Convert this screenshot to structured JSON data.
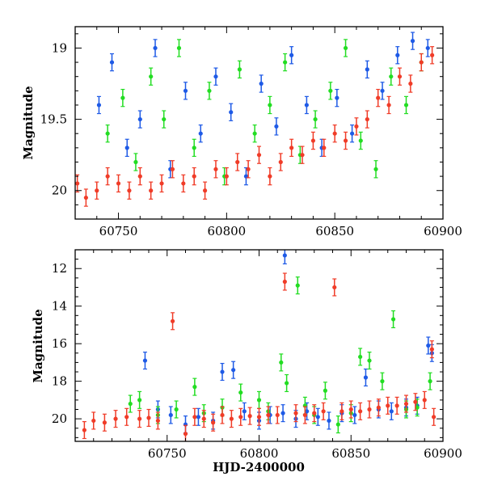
{
  "chart_data": [
    {
      "type": "scatter",
      "title": "",
      "xlabel": "",
      "ylabel": "Magnitude",
      "xlim": [
        60730,
        60900
      ],
      "ylim": [
        20.2,
        18.85
      ],
      "y_inverted": true,
      "grid": false,
      "xticks": [
        60750,
        60800,
        60850,
        60900
      ],
      "yticks": [
        19,
        19.5,
        20
      ],
      "series": [
        {
          "color": "#22dd22",
          "x": [
            60745,
            60752,
            60758,
            60765,
            60771,
            60778,
            60785,
            60792,
            60799,
            60806,
            60813,
            60820,
            60827,
            60834,
            60841,
            60848,
            60855,
            60862,
            60869,
            60876,
            60883,
            60890
          ],
          "y": [
            19.6,
            19.35,
            19.8,
            19.2,
            19.5,
            19.0,
            19.7,
            19.3,
            19.9,
            19.15,
            19.6,
            19.4,
            19.1,
            19.75,
            19.5,
            19.3,
            19.0,
            19.65,
            19.85,
            19.2,
            19.4,
            19.1
          ]
        },
        {
          "color": "#1e5ae6",
          "x": [
            60741,
            60747,
            60754,
            60760,
            60767,
            60774,
            60781,
            60788,
            60795,
            60802,
            60809,
            60816,
            60823,
            60830,
            60837,
            60844,
            60851,
            60858,
            60865,
            60872,
            60879,
            60886,
            60893
          ],
          "y": [
            19.4,
            19.1,
            19.7,
            19.5,
            19.0,
            19.85,
            19.3,
            19.6,
            19.2,
            19.45,
            19.9,
            19.25,
            19.55,
            19.05,
            19.4,
            19.7,
            19.35,
            19.6,
            19.15,
            19.3,
            19.05,
            18.95,
            19.0
          ]
        },
        {
          "color": "#f03c28",
          "x": [
            60731,
            60735,
            60740,
            60745,
            60750,
            60755,
            60760,
            60765,
            60770,
            60775,
            60780,
            60785,
            60790,
            60795,
            60800,
            60805,
            60810,
            60815,
            60820,
            60825,
            60830,
            60835,
            60840,
            60845,
            60850,
            60855,
            60860,
            60865,
            60870,
            60875,
            60880,
            60885,
            60890,
            60895
          ],
          "y": [
            19.95,
            20.05,
            20.0,
            19.9,
            19.95,
            20.0,
            19.9,
            20.0,
            19.95,
            19.85,
            19.95,
            19.9,
            20.0,
            19.85,
            19.9,
            19.8,
            19.85,
            19.75,
            19.9,
            19.8,
            19.7,
            19.75,
            19.65,
            19.7,
            19.6,
            19.65,
            19.55,
            19.5,
            19.35,
            19.4,
            19.2,
            19.25,
            19.1,
            19.05
          ]
        }
      ]
    },
    {
      "type": "scatter",
      "title": "",
      "xlabel": "HJD-2400000",
      "ylabel": "Magnitude",
      "xlim": [
        60700,
        60900
      ],
      "ylim": [
        21.2,
        11.0
      ],
      "y_inverted": true,
      "grid": false,
      "xticks": [
        60750,
        60800,
        60850,
        60900
      ],
      "yticks": [
        12,
        14,
        16,
        18,
        20
      ],
      "series": [
        {
          "color": "#1e5ae6",
          "x": [
            60738,
            60745,
            60752,
            60760,
            60767,
            60775,
            60780,
            60786,
            60792,
            60800,
            60806,
            60813,
            60814,
            60820,
            60826,
            60832,
            60838,
            60845,
            60852,
            60858,
            60865,
            60872,
            60880,
            60886,
            60892,
            60894
          ],
          "y": [
            16.9,
            19.5,
            19.8,
            20.3,
            19.9,
            20.1,
            17.5,
            17.4,
            19.6,
            20.1,
            19.8,
            19.7,
            11.3,
            20.0,
            19.6,
            19.9,
            20.1,
            19.7,
            19.8,
            17.8,
            19.5,
            19.6,
            19.4,
            19.3,
            16.1,
            16.5
          ]
        },
        {
          "color": "#22dd22",
          "x": [
            60730,
            60735,
            60745,
            60755,
            60765,
            60770,
            60780,
            60790,
            60800,
            60805,
            60812,
            60815,
            60821,
            60825,
            60830,
            60836,
            60843,
            60850,
            60855,
            60860,
            60867,
            60873,
            60880,
            60886,
            60893
          ],
          "y": [
            19.2,
            19.0,
            19.8,
            19.5,
            18.3,
            19.7,
            19.4,
            18.6,
            19.0,
            19.6,
            17.0,
            18.1,
            12.9,
            19.3,
            19.8,
            18.5,
            20.3,
            19.7,
            16.7,
            16.9,
            18.0,
            14.7,
            19.5,
            19.4,
            18.0
          ]
        },
        {
          "color": "#f03c28",
          "x": [
            60705,
            60710,
            60716,
            60722,
            60728,
            60735,
            60740,
            60745,
            60753,
            60760,
            60765,
            60770,
            60775,
            60780,
            60785,
            60790,
            60795,
            60800,
            60805,
            60810,
            60814,
            60820,
            60825,
            60830,
            60835,
            60841,
            60845,
            60850,
            60855,
            60860,
            60865,
            60870,
            60875,
            60880,
            60885,
            60890,
            60894,
            60895
          ],
          "y": [
            20.6,
            20.1,
            20.2,
            20.0,
            19.9,
            20.0,
            19.95,
            20.1,
            14.8,
            20.8,
            19.9,
            20.0,
            20.2,
            19.8,
            20.0,
            19.9,
            19.85,
            19.9,
            19.8,
            19.8,
            12.7,
            19.7,
            19.8,
            19.7,
            19.6,
            13.0,
            19.6,
            19.5,
            19.6,
            19.5,
            19.4,
            19.3,
            19.3,
            19.2,
            19.1,
            19.0,
            16.3,
            19.9
          ]
        }
      ]
    }
  ]
}
